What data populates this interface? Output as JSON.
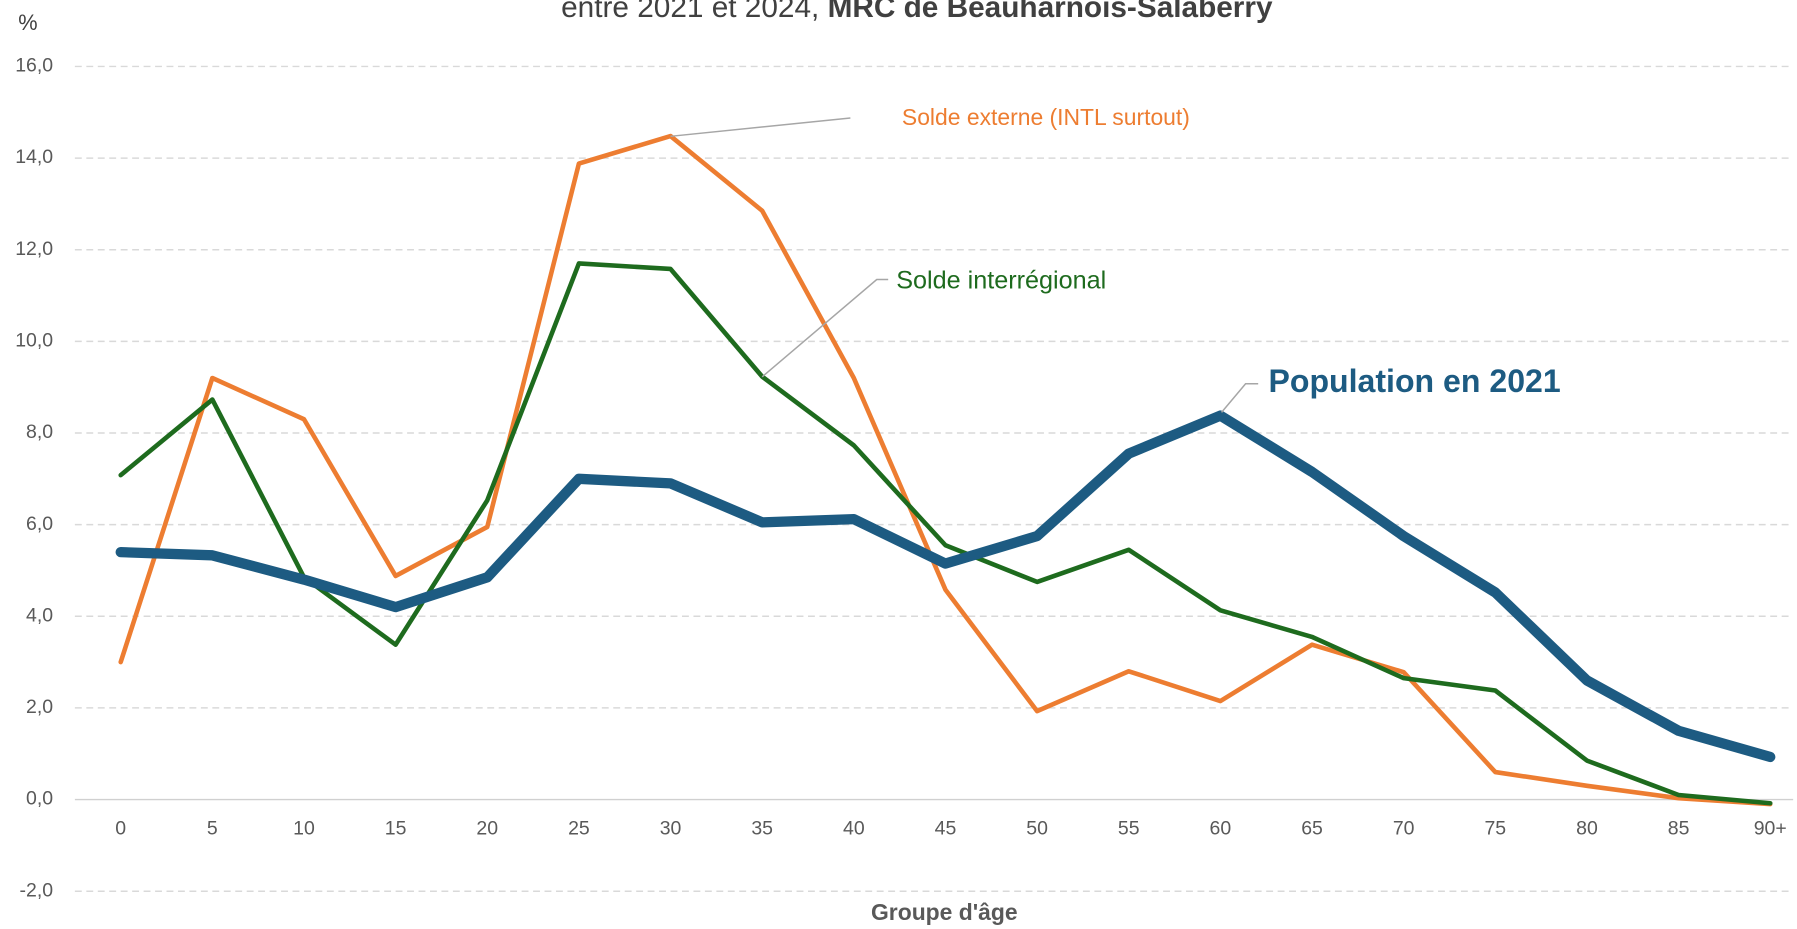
{
  "chart_data": {
    "type": "line",
    "title_parts": [
      "entre 2021 et 2024,",
      "MRC de Beauharnois-Salaberry"
    ],
    "y_label": "%",
    "x_label": "Groupe d'âge",
    "categories": [
      "0",
      "5",
      "10",
      "15",
      "20",
      "25",
      "30",
      "35",
      "40",
      "45",
      "50",
      "55",
      "60",
      "65",
      "70",
      "75",
      "80",
      "85",
      "90+"
    ],
    "ylim": [
      -2,
      16
    ],
    "yticks": [
      {
        "value": -2,
        "label": "-2,0"
      },
      {
        "value": 0,
        "label": "0,0"
      },
      {
        "value": 2,
        "label": "2,0"
      },
      {
        "value": 4,
        "label": "4,0"
      },
      {
        "value": 6,
        "label": "6,0"
      },
      {
        "value": 8,
        "label": "8,0"
      },
      {
        "value": 10,
        "label": "10,0"
      },
      {
        "value": 12,
        "label": "12,0"
      },
      {
        "value": 14,
        "label": "14,0"
      },
      {
        "value": 16,
        "label": "16,0"
      }
    ],
    "grid": true,
    "series": [
      {
        "name": "Solde externe (INTL surtout)",
        "color": "#ed7d31",
        "values": [
          3.0,
          9.2,
          8.3,
          4.88,
          5.95,
          13.88,
          14.48,
          12.85,
          9.2,
          4.58,
          1.93,
          2.8,
          2.15,
          3.38,
          2.78,
          0.6,
          0.3,
          0.03,
          -0.1
        ]
      },
      {
        "name": "Solde interrégional",
        "color": "#1e6b1e",
        "values": [
          7.08,
          8.73,
          4.85,
          3.38,
          6.53,
          11.7,
          11.58,
          9.23,
          7.73,
          5.55,
          4.75,
          5.45,
          4.13,
          3.55,
          2.65,
          2.38,
          0.85,
          0.1,
          -0.08
        ]
      },
      {
        "name": "Population en 2021",
        "color": "#1d5b82",
        "values": [
          5.4,
          5.33,
          4.8,
          4.2,
          4.85,
          7.0,
          6.9,
          6.05,
          6.12,
          5.15,
          5.75,
          7.55,
          8.38,
          7.15,
          5.75,
          4.52,
          2.6,
          1.5,
          0.93
        ]
      }
    ]
  }
}
